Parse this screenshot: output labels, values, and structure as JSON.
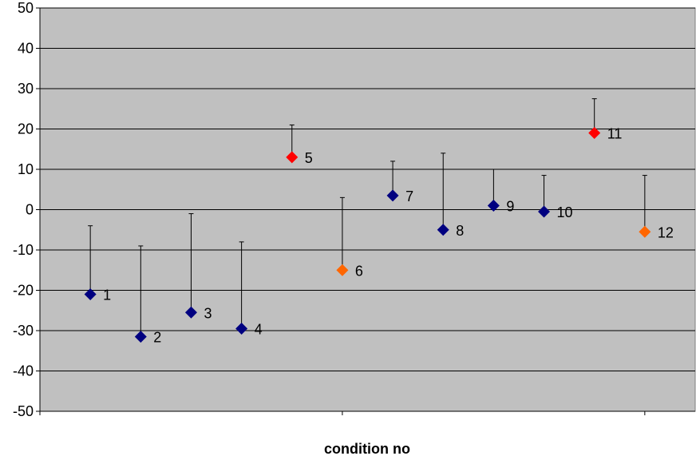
{
  "chart_data": {
    "type": "scatter",
    "xlabel": "condition no",
    "ylabel": "",
    "title": "",
    "ylim": [
      -50,
      50
    ],
    "ytick_step": 10,
    "xlim": [
      0,
      13
    ],
    "grid": true,
    "legend": "none",
    "background_color": "#c0c0c0",
    "colors": {
      "navy": "#000080",
      "red": "#ff0000",
      "orange": "#ff6600"
    },
    "points": [
      {
        "label": "1",
        "x": 1,
        "y": -21,
        "err_top": -4,
        "color": "#000080"
      },
      {
        "label": "2",
        "x": 2,
        "y": -31.5,
        "err_top": -9,
        "color": "#000080"
      },
      {
        "label": "3",
        "x": 3,
        "y": -25.5,
        "err_top": -1,
        "color": "#000080"
      },
      {
        "label": "4",
        "x": 4,
        "y": -29.5,
        "err_top": -8,
        "color": "#000080"
      },
      {
        "label": "5",
        "x": 5,
        "y": 13,
        "err_top": 21,
        "color": "#ff0000"
      },
      {
        "label": "6",
        "x": 6,
        "y": -15,
        "err_top": 3,
        "color": "#ff6600"
      },
      {
        "label": "7",
        "x": 7,
        "y": 3.5,
        "err_top": 12,
        "color": "#000080"
      },
      {
        "label": "8",
        "x": 8,
        "y": -5,
        "err_top": 14,
        "color": "#000080"
      },
      {
        "label": "9",
        "x": 9,
        "y": 1,
        "err_top": 10,
        "color": "#000080"
      },
      {
        "label": "10",
        "x": 10,
        "y": -0.5,
        "err_top": 8.5,
        "color": "#000080"
      },
      {
        "label": "11",
        "x": 11,
        "y": 19,
        "err_top": 27.5,
        "color": "#ff0000"
      },
      {
        "label": "12",
        "x": 12,
        "y": -5.5,
        "err_top": 8.5,
        "color": "#ff6600"
      }
    ]
  }
}
